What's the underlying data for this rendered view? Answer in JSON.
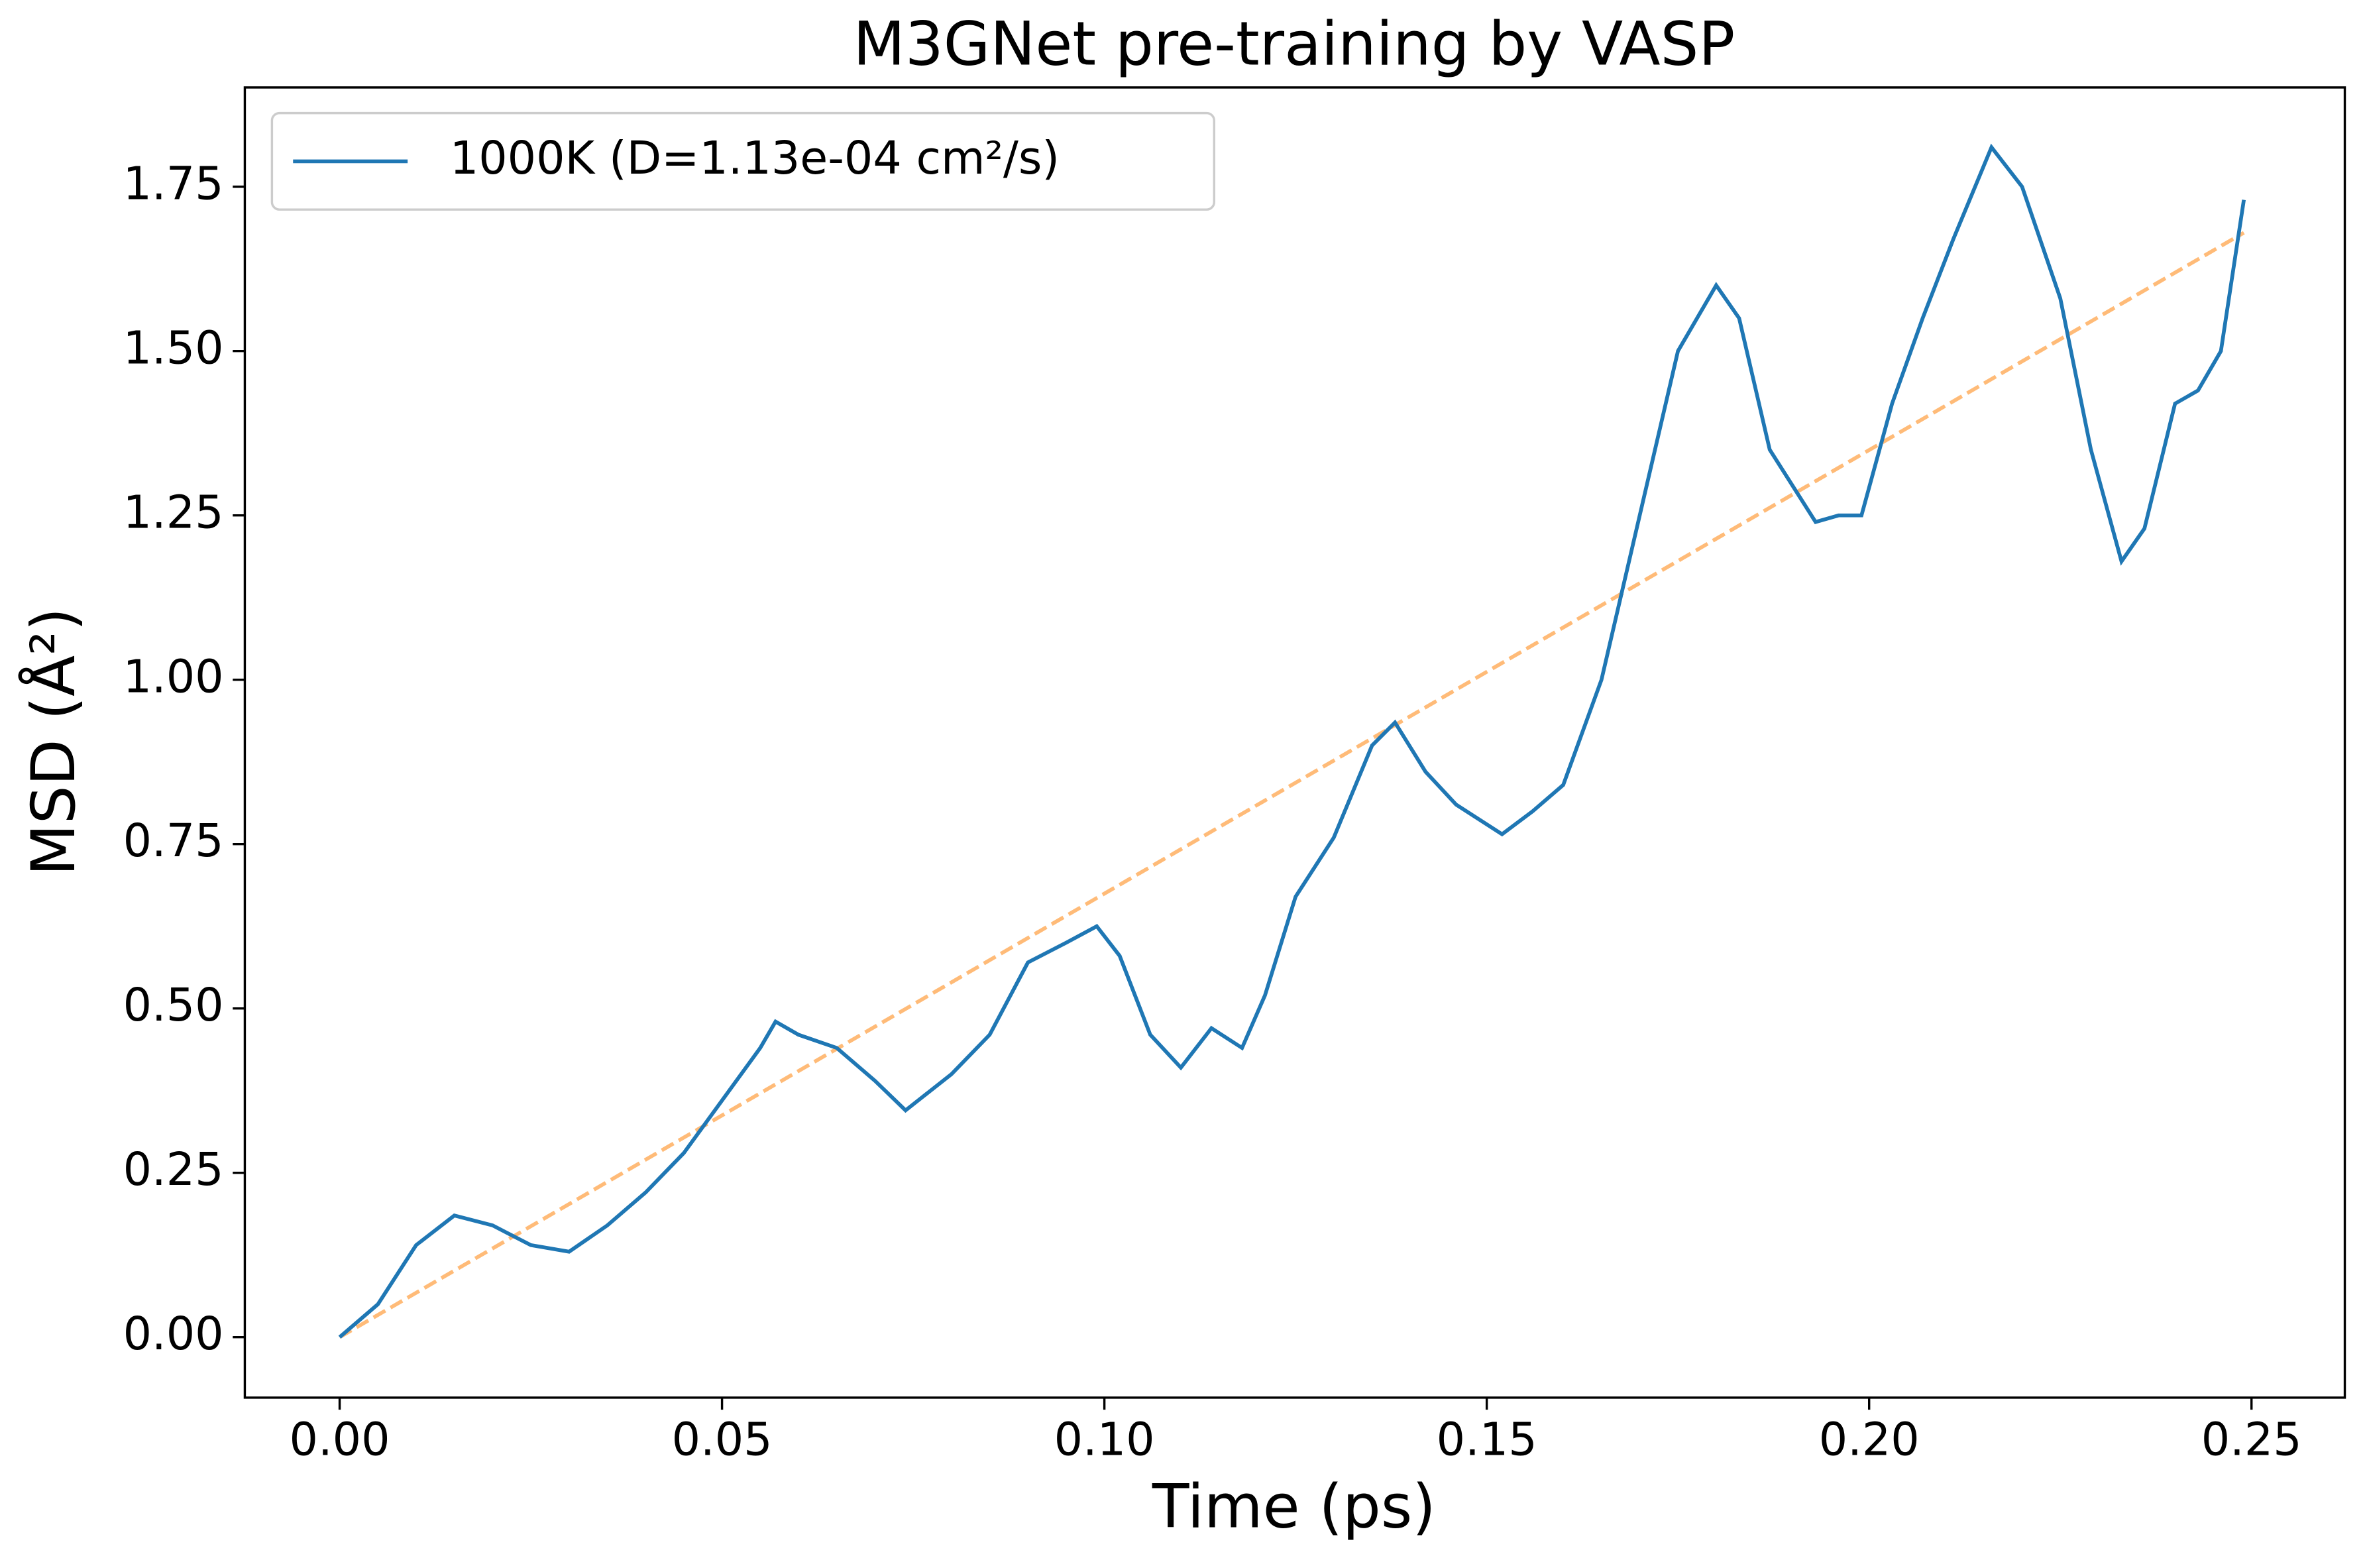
{
  "chart_data": {
    "type": "line",
    "title": "M3GNet pre-training by VASP",
    "xlabel": "Time (ps)",
    "ylabel": "MSD (Å²)",
    "xlim": [
      -0.0124,
      0.2622
    ],
    "ylim": [
      -0.092,
      1.901
    ],
    "xticks": [
      {
        "value": 0,
        "label": "0.00"
      },
      {
        "value": 0.05,
        "label": "0.05"
      },
      {
        "value": 0.1,
        "label": "0.10"
      },
      {
        "value": 0.15,
        "label": "0.15"
      },
      {
        "value": 0.2,
        "label": "0.20"
      },
      {
        "value": 0.25,
        "label": "0.25"
      }
    ],
    "yticks": [
      {
        "value": 0,
        "label": "0.00"
      },
      {
        "value": 0.25,
        "label": "0.25"
      },
      {
        "value": 0.5,
        "label": "0.50"
      },
      {
        "value": 0.75,
        "label": "0.75"
      },
      {
        "value": 1,
        "label": "1.00"
      },
      {
        "value": 1.25,
        "label": "1.25"
      },
      {
        "value": 1.5,
        "label": "1.50"
      },
      {
        "value": 1.75,
        "label": "1.75"
      }
    ],
    "legend_position": "upper left",
    "series": [
      {
        "name": "1000K (D=1.13e-04 cm²/s)",
        "color": "#1f77b4",
        "linestyle": "solid",
        "x": [
          0,
          0.005,
          0.01,
          0.015,
          0.02,
          0.025,
          0.03,
          0.035,
          0.04,
          0.045,
          0.05,
          0.055,
          0.057,
          0.06,
          0.065,
          0.07,
          0.074,
          0.08,
          0.085,
          0.09,
          0.095,
          0.099,
          0.102,
          0.106,
          0.11,
          0.114,
          0.118,
          0.121,
          0.125,
          0.13,
          0.135,
          0.138,
          0.142,
          0.146,
          0.152,
          0.156,
          0.16,
          0.165,
          0.17,
          0.175,
          0.18,
          0.183,
          0.187,
          0.193,
          0.196,
          0.199,
          0.203,
          0.207,
          0.211,
          0.216,
          0.22,
          0.225,
          0.229,
          0.233,
          0.236,
          0.24,
          0.243,
          0.246,
          0.249
        ],
        "values": [
          0,
          0.05,
          0.14,
          0.185,
          0.17,
          0.14,
          0.13,
          0.17,
          0.22,
          0.28,
          0.36,
          0.44,
          0.48,
          0.46,
          0.44,
          0.39,
          0.345,
          0.4,
          0.46,
          0.57,
          0.6,
          0.625,
          0.58,
          0.46,
          0.41,
          0.47,
          0.44,
          0.52,
          0.67,
          0.76,
          0.9,
          0.935,
          0.86,
          0.81,
          0.765,
          0.8,
          0.84,
          1.0,
          1.25,
          1.5,
          1.6,
          1.55,
          1.35,
          1.24,
          1.25,
          1.25,
          1.42,
          1.55,
          1.67,
          1.81,
          1.75,
          1.58,
          1.35,
          1.18,
          1.23,
          1.42,
          1.44,
          1.5,
          1.73
        ]
      },
      {
        "color": "#ffbb78",
        "linestyle": "dashed",
        "x": [
          0,
          0.249
        ],
        "values": [
          0,
          1.68
        ]
      }
    ]
  }
}
